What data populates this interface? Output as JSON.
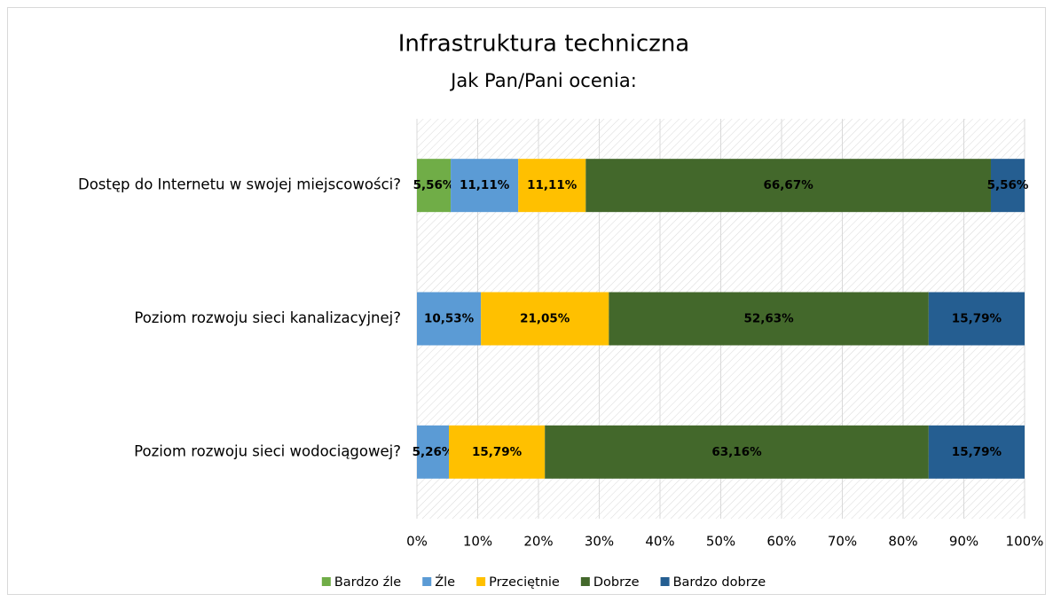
{
  "chart_data": {
    "type": "stacked-bar-horizontal",
    "title": "Infrastruktura techniczna",
    "subtitle": "Jak Pan/Pani ocenia:",
    "categories": [
      "Dostęp do Internetu w swojej miejscowości?",
      "Poziom rozwoju sieci kanalizacyjnej?",
      "Poziom rozwoju sieci wodociągowej?"
    ],
    "series": [
      {
        "name": "Bardzo źle",
        "color": "#70ad47",
        "values": [
          5.56,
          0,
          0
        ],
        "value_labels": [
          "5,56%",
          null,
          null
        ]
      },
      {
        "name": "Źle",
        "color": "#5b9bd5",
        "values": [
          11.11,
          10.53,
          5.26
        ],
        "value_labels": [
          "11,11%",
          "10,53%",
          "5,26%"
        ]
      },
      {
        "name": "Przeciętnie",
        "color": "#ffc000",
        "values": [
          11.11,
          21.05,
          15.79
        ],
        "value_labels": [
          "11,11%",
          "21,05%",
          "15,79%"
        ]
      },
      {
        "name": "Dobrze",
        "color": "#43682b",
        "values": [
          66.67,
          52.63,
          63.16
        ],
        "value_labels": [
          "66,67%",
          "52,63%",
          "63,16%"
        ]
      },
      {
        "name": "Bardzo dobrze",
        "color": "#255e91",
        "values": [
          5.56,
          15.79,
          15.79
        ],
        "value_labels": [
          "5,56%",
          "15,79%",
          "15,79%"
        ]
      }
    ],
    "xlim": [
      0,
      100
    ],
    "xticks": [
      {
        "value": 0,
        "label": "0%"
      },
      {
        "value": 10,
        "label": "10%"
      },
      {
        "value": 20,
        "label": "20%"
      },
      {
        "value": 30,
        "label": "30%"
      },
      {
        "value": 40,
        "label": "40%"
      },
      {
        "value": 50,
        "label": "50%"
      },
      {
        "value": 60,
        "label": "60%"
      },
      {
        "value": 70,
        "label": "70%"
      },
      {
        "value": 80,
        "label": "80%"
      },
      {
        "value": 90,
        "label": "90%"
      },
      {
        "value": 100,
        "label": "100%"
      }
    ],
    "grid": true,
    "legend": "bottom"
  }
}
